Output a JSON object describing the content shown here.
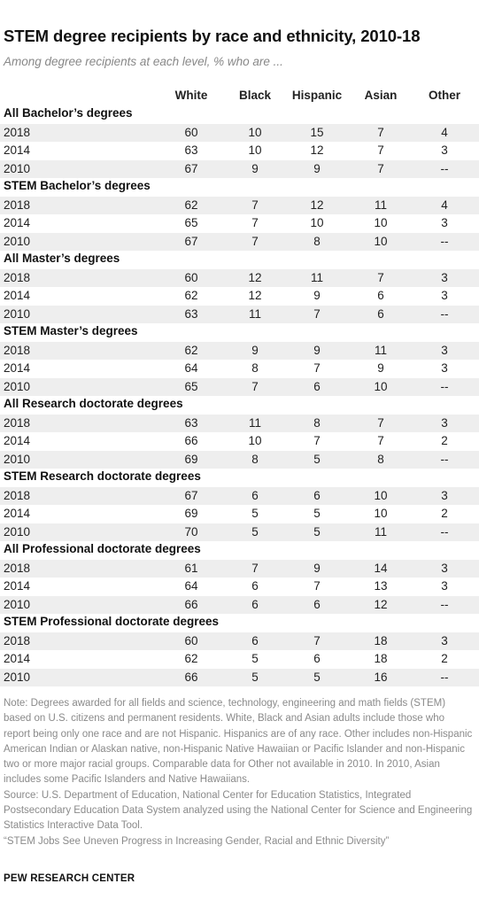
{
  "title": "STEM degree recipients by race and ethnicity, 2010-18",
  "subtitle": "Among degree recipients at each level, % who are ...",
  "columns": [
    "White",
    "Black",
    "Hispanic",
    "Asian",
    "Other"
  ],
  "chart_data": {
    "type": "table",
    "title": "STEM degree recipients by race and ethnicity, 2010-18",
    "subtitle": "Among degree recipients at each level, % who are ...",
    "columns": [
      "White",
      "Black",
      "Hispanic",
      "Asian",
      "Other"
    ],
    "groups": [
      {
        "name": "All Bachelor’s degrees",
        "rows": [
          {
            "year": "2018",
            "values": [
              "60",
              "10",
              "15",
              "7",
              "4"
            ]
          },
          {
            "year": "2014",
            "values": [
              "63",
              "10",
              "12",
              "7",
              "3"
            ]
          },
          {
            "year": "2010",
            "values": [
              "67",
              "9",
              "9",
              "7",
              "--"
            ]
          }
        ]
      },
      {
        "name": "STEM Bachelor’s degrees",
        "rows": [
          {
            "year": "2018",
            "values": [
              "62",
              "7",
              "12",
              "11",
              "4"
            ]
          },
          {
            "year": "2014",
            "values": [
              "65",
              "7",
              "10",
              "10",
              "3"
            ]
          },
          {
            "year": "2010",
            "values": [
              "67",
              "7",
              "8",
              "10",
              "--"
            ]
          }
        ]
      },
      {
        "name": "All Master’s degrees",
        "rows": [
          {
            "year": "2018",
            "values": [
              "60",
              "12",
              "11",
              "7",
              "3"
            ]
          },
          {
            "year": "2014",
            "values": [
              "62",
              "12",
              "9",
              "6",
              "3"
            ]
          },
          {
            "year": "2010",
            "values": [
              "63",
              "11",
              "7",
              "6",
              "--"
            ]
          }
        ]
      },
      {
        "name": "STEM Master’s degrees",
        "rows": [
          {
            "year": "2018",
            "values": [
              "62",
              "9",
              "9",
              "11",
              "3"
            ]
          },
          {
            "year": "2014",
            "values": [
              "64",
              "8",
              "7",
              "9",
              "3"
            ]
          },
          {
            "year": "2010",
            "values": [
              "65",
              "7",
              "6",
              "10",
              "--"
            ]
          }
        ]
      },
      {
        "name": "All Research doctorate degrees",
        "rows": [
          {
            "year": "2018",
            "values": [
              "63",
              "11",
              "8",
              "7",
              "3"
            ]
          },
          {
            "year": "2014",
            "values": [
              "66",
              "10",
              "7",
              "7",
              "2"
            ]
          },
          {
            "year": "2010",
            "values": [
              "69",
              "8",
              "5",
              "8",
              "--"
            ]
          }
        ]
      },
      {
        "name": "STEM Research doctorate degrees",
        "rows": [
          {
            "year": "2018",
            "values": [
              "67",
              "6",
              "6",
              "10",
              "3"
            ]
          },
          {
            "year": "2014",
            "values": [
              "69",
              "5",
              "5",
              "10",
              "2"
            ]
          },
          {
            "year": "2010",
            "values": [
              "70",
              "5",
              "5",
              "11",
              "--"
            ]
          }
        ]
      },
      {
        "name": "All Professional doctorate degrees",
        "rows": [
          {
            "year": "2018",
            "values": [
              "61",
              "7",
              "9",
              "14",
              "3"
            ]
          },
          {
            "year": "2014",
            "values": [
              "64",
              "6",
              "7",
              "13",
              "3"
            ]
          },
          {
            "year": "2010",
            "values": [
              "66",
              "6",
              "6",
              "12",
              "--"
            ]
          }
        ]
      },
      {
        "name": "STEM Professional doctorate degrees",
        "rows": [
          {
            "year": "2018",
            "values": [
              "60",
              "6",
              "7",
              "18",
              "3"
            ]
          },
          {
            "year": "2014",
            "values": [
              "62",
              "5",
              "6",
              "18",
              "2"
            ]
          },
          {
            "year": "2010",
            "values": [
              "66",
              "5",
              "5",
              "16",
              "--"
            ]
          }
        ]
      }
    ]
  },
  "notes": [
    "Note: Degrees awarded for all fields and science, technology, engineering and math fields (STEM) based on U.S. citizens and permanent residents. White, Black and Asian adults include those who report being only one race and are not Hispanic. Hispanics are of any race. Other includes non-Hispanic American Indian or Alaskan native, non-Hispanic Native Hawaiian or Pacific Islander and non-Hispanic two or more major racial groups. Comparable data for Other not available in 2010. In 2010, Asian includes some Pacific Islanders and Native Hawaiians.",
    "Source: U.S. Department of Education, National Center for Education Statistics, Integrated Postsecondary Education Data System analyzed using the National Center for Science and Engineering Statistics Interactive Data Tool.",
    "“STEM Jobs See Uneven Progress in Increasing Gender, Racial and Ethnic Diversity”"
  ],
  "brand": "PEW RESEARCH CENTER",
  "colors": {
    "shade": "#eeeeee",
    "text": "#222222",
    "note": "#8a8a8a"
  }
}
